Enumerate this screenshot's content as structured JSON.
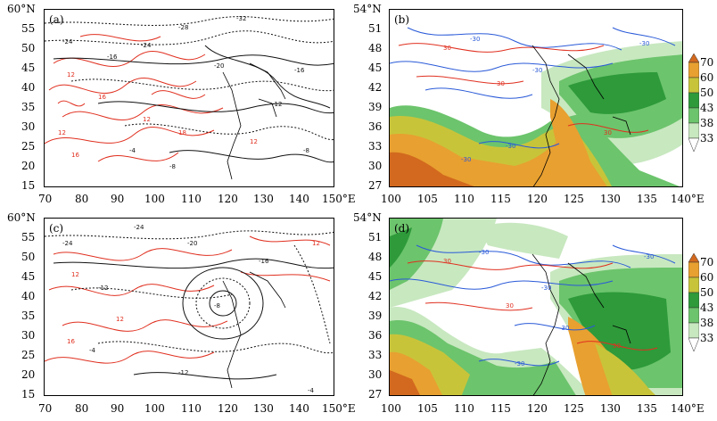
{
  "panels": [
    {
      "id": "a",
      "label": "(a)",
      "y_ticks": [
        "60°N",
        "55",
        "50",
        "45",
        "40",
        "35",
        "30",
        "25",
        "20",
        "15"
      ],
      "x_ticks": [
        "70",
        "80",
        "90",
        "100",
        "110",
        "120",
        "130",
        "140",
        "150°E"
      ],
      "contour_labels_black": [
        "-32",
        "-28",
        "-24",
        "-20",
        "-16",
        "-12",
        "-8",
        "-4",
        "-8",
        "-24",
        "-16"
      ],
      "contour_labels_red": [
        "12",
        "16",
        "12",
        "12",
        "16",
        "18",
        "12"
      ]
    },
    {
      "id": "b",
      "label": "(b)",
      "y_ticks": [
        "54°N",
        "51",
        "48",
        "45",
        "42",
        "39",
        "36",
        "33",
        "30",
        "27"
      ],
      "x_ticks": [
        "100",
        "105",
        "110",
        "115",
        "120",
        "125",
        "130",
        "135",
        "140°E"
      ],
      "contour_labels_blue": [
        "-30",
        "-30",
        "-30",
        "-30",
        "-30"
      ],
      "contour_labels_red": [
        "30",
        "30",
        "30"
      ]
    },
    {
      "id": "c",
      "label": "(c)",
      "y_ticks": [
        "60°N",
        "55",
        "50",
        "45",
        "40",
        "35",
        "30",
        "25",
        "20",
        "15"
      ],
      "x_ticks": [
        "70",
        "80",
        "90",
        "100",
        "110",
        "120",
        "130",
        "140",
        "150°E"
      ],
      "contour_labels_black": [
        "-24",
        "-20",
        "-16",
        "-12",
        "-8",
        "-4",
        "-12",
        "-24",
        "-4"
      ],
      "contour_labels_red": [
        "12",
        "12",
        "16",
        "12"
      ]
    },
    {
      "id": "d",
      "label": "(d)",
      "y_ticks": [
        "54°N",
        "51",
        "48",
        "45",
        "42",
        "39",
        "36",
        "33",
        "30",
        "27"
      ],
      "x_ticks": [
        "100",
        "105",
        "110",
        "115",
        "120",
        "125",
        "130",
        "135",
        "140°E"
      ],
      "contour_labels_blue": [
        "-30",
        "-30",
        "-30",
        "-30",
        "-30"
      ],
      "contour_labels_red": [
        "30",
        "30",
        "30"
      ]
    }
  ],
  "colorbar": {
    "levels": [
      "70",
      "60",
      "50",
      "43",
      "38",
      "33"
    ],
    "colors": [
      "#d2691e",
      "#e8a030",
      "#c8c43a",
      "#2e9a3a",
      "#6cc46c",
      "#c8e8c0",
      "#ffffff"
    ]
  },
  "colors": {
    "black_contour": "#111111",
    "red_contour": "#e03020",
    "blue_contour": "#2a5ad8",
    "coast": "#000000"
  }
}
